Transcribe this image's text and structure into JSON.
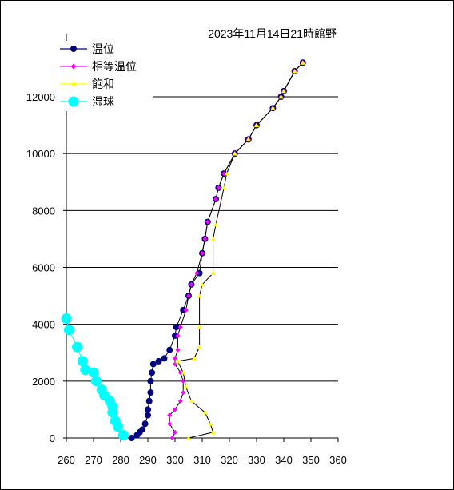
{
  "chart_data": {
    "type": "line",
    "title": "2023年11月14日21時館野",
    "xlabel": "",
    "ylabel": "",
    "xlim": [
      260,
      360
    ],
    "ylim": [
      0,
      12000
    ],
    "xticks": [
      260,
      270,
      280,
      290,
      300,
      310,
      320,
      330,
      340,
      350,
      360
    ],
    "yticks": [
      0,
      2000,
      4000,
      6000,
      8000,
      10000,
      12000
    ],
    "grid": "horizontal",
    "legend_position": "top-left",
    "series": [
      {
        "name": "温位",
        "color": "#000080",
        "marker": "circle",
        "points": [
          [
            284,
            0
          ],
          [
            286,
            100
          ],
          [
            287,
            200
          ],
          [
            288,
            300
          ],
          [
            289,
            500
          ],
          [
            290,
            800
          ],
          [
            290,
            1000
          ],
          [
            290.5,
            1300
          ],
          [
            291,
            1600
          ],
          [
            291,
            2000
          ],
          [
            291.5,
            2300
          ],
          [
            292,
            2600
          ],
          [
            294,
            2700
          ],
          [
            296,
            2800
          ],
          [
            298,
            3100
          ],
          [
            300,
            3600
          ],
          [
            300.5,
            3900
          ],
          [
            303,
            4500
          ],
          [
            305,
            5000
          ],
          [
            306,
            5400
          ],
          [
            309,
            5800
          ],
          [
            310,
            6500
          ],
          [
            311,
            7000
          ],
          [
            312,
            7600
          ],
          [
            315,
            8400
          ],
          [
            316,
            8800
          ],
          [
            318,
            9300
          ],
          [
            322,
            10000
          ],
          [
            327,
            10500
          ],
          [
            330,
            11000
          ],
          [
            336,
            11600
          ],
          [
            339,
            12000
          ],
          [
            340,
            12200
          ],
          [
            344,
            12900
          ],
          [
            347,
            13200
          ]
        ]
      },
      {
        "name": "相等温位",
        "color": "#ff00ff",
        "marker": "diamond",
        "points": [
          [
            299,
            0
          ],
          [
            300,
            200
          ],
          [
            298,
            500
          ],
          [
            298,
            800
          ],
          [
            300,
            1000
          ],
          [
            302,
            1300
          ],
          [
            303,
            1600
          ],
          [
            303,
            2000
          ],
          [
            302,
            2300
          ],
          [
            300,
            2600
          ],
          [
            300,
            2800
          ],
          [
            301,
            3100
          ],
          [
            301,
            3600
          ],
          [
            302,
            3900
          ],
          [
            304,
            4500
          ],
          [
            305,
            5000
          ],
          [
            306,
            5400
          ],
          [
            308,
            5800
          ],
          [
            310,
            6500
          ],
          [
            311,
            7000
          ],
          [
            312,
            7600
          ],
          [
            315,
            8400
          ],
          [
            316,
            8800
          ],
          [
            318,
            9300
          ],
          [
            322,
            10000
          ],
          [
            327,
            10500
          ],
          [
            330,
            11000
          ],
          [
            336,
            11600
          ],
          [
            339,
            12000
          ],
          [
            340,
            12200
          ],
          [
            344,
            12900
          ],
          [
            347,
            13200
          ]
        ]
      },
      {
        "name": "飽和",
        "color": "#ffff00",
        "marker": "triangle",
        "points": [
          [
            305,
            0
          ],
          [
            314,
            200
          ],
          [
            313,
            500
          ],
          [
            311,
            900
          ],
          [
            306,
            1300
          ],
          [
            304,
            1800
          ],
          [
            303,
            2300
          ],
          [
            301,
            2700
          ],
          [
            307,
            2800
          ],
          [
            309,
            3200
          ],
          [
            309,
            3900
          ],
          [
            309,
            5000
          ],
          [
            310,
            5400
          ],
          [
            314,
            5800
          ],
          [
            314,
            7000
          ],
          [
            315,
            7500
          ],
          [
            318,
            8800
          ],
          [
            319,
            9300
          ],
          [
            322,
            10000
          ],
          [
            327,
            10500
          ],
          [
            330,
            11000
          ],
          [
            336,
            11600
          ],
          [
            339,
            12000
          ],
          [
            340,
            12200
          ],
          [
            344,
            12900
          ],
          [
            347,
            13200
          ]
        ]
      },
      {
        "name": "湿球",
        "color": "#00ffff",
        "marker": "circle",
        "points": [
          [
            260,
            4200
          ],
          [
            261,
            3800
          ],
          [
            264,
            3200
          ],
          [
            266,
            2700
          ],
          [
            267,
            2400
          ],
          [
            270,
            2300
          ],
          [
            271,
            2000
          ],
          [
            273,
            1700
          ],
          [
            274,
            1500
          ],
          [
            276,
            1300
          ],
          [
            277,
            1100
          ],
          [
            277,
            900
          ],
          [
            278,
            600
          ],
          [
            279,
            400
          ],
          [
            281,
            100
          ]
        ]
      }
    ]
  }
}
